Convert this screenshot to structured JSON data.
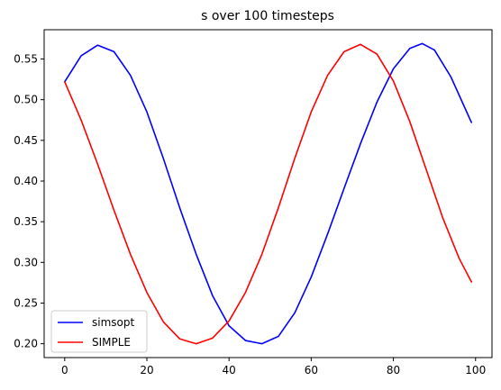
{
  "chart_data": {
    "type": "line",
    "title": "s over 100 timesteps",
    "xlabel": "",
    "ylabel": "",
    "xlim": [
      -5,
      104
    ],
    "ylim": [
      0.183,
      0.586
    ],
    "x_ticks": [
      0,
      20,
      40,
      60,
      80,
      100
    ],
    "x_tick_labels": [
      "0",
      "20",
      "40",
      "60",
      "80",
      "100"
    ],
    "y_ticks": [
      0.2,
      0.25,
      0.3,
      0.35,
      0.4,
      0.45,
      0.5,
      0.55
    ],
    "y_tick_labels": [
      "0.20",
      "0.25",
      "0.30",
      "0.35",
      "0.40",
      "0.45",
      "0.50",
      "0.55"
    ],
    "grid": false,
    "legend_position": "lower-left",
    "series": [
      {
        "name": "simsopt",
        "color": "#0000ff",
        "x": [
          0,
          4,
          8,
          12,
          16,
          20,
          24,
          28,
          32,
          36,
          40,
          44,
          48,
          52,
          56,
          60,
          64,
          68,
          72,
          76,
          80,
          84,
          87,
          90,
          94,
          99
        ],
        "y": [
          0.522,
          0.554,
          0.567,
          0.559,
          0.53,
          0.485,
          0.428,
          0.367,
          0.31,
          0.259,
          0.222,
          0.204,
          0.2,
          0.209,
          0.238,
          0.282,
          0.335,
          0.391,
          0.446,
          0.497,
          0.538,
          0.563,
          0.569,
          0.561,
          0.528,
          0.472
        ]
      },
      {
        "name": "SIMPLE",
        "color": "#ff0000",
        "x": [
          0,
          4,
          8,
          12,
          16,
          20,
          24,
          28,
          32,
          36,
          40,
          44,
          48,
          52,
          56,
          60,
          64,
          68,
          72,
          76,
          80,
          84,
          88,
          92,
          96,
          99
        ],
        "y": [
          0.522,
          0.475,
          0.421,
          0.364,
          0.31,
          0.263,
          0.227,
          0.206,
          0.2,
          0.207,
          0.228,
          0.263,
          0.31,
          0.367,
          0.428,
          0.485,
          0.53,
          0.559,
          0.568,
          0.556,
          0.523,
          0.473,
          0.414,
          0.355,
          0.305,
          0.276
        ]
      }
    ]
  }
}
